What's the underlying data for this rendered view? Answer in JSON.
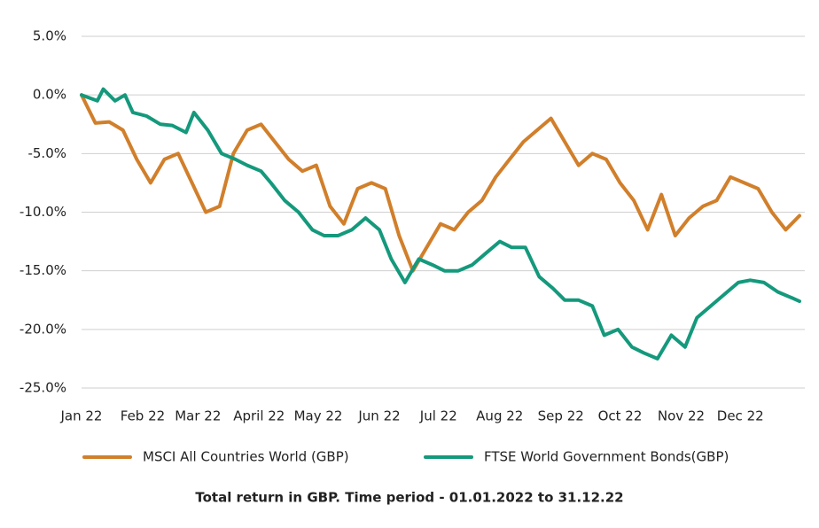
{
  "chart_data": {
    "type": "line",
    "caption": "Total return in GBP. Time period - 01.01.2022 to 31.12.22",
    "xlim": [
      0,
      364
    ],
    "xticks": [
      {
        "value": 0,
        "label": "Jan 22"
      },
      {
        "value": 31,
        "label": "Feb 22"
      },
      {
        "value": 59,
        "label": "Mar 22"
      },
      {
        "value": 90,
        "label": "April 22"
      },
      {
        "value": 120,
        "label": "May 22"
      },
      {
        "value": 151,
        "label": "Jun 22"
      },
      {
        "value": 181,
        "label": "Jul 22"
      },
      {
        "value": 212,
        "label": "Aug 22"
      },
      {
        "value": 243,
        "label": "Sep 22"
      },
      {
        "value": 273,
        "label": "Oct 22"
      },
      {
        "value": 304,
        "label": "Nov 22"
      },
      {
        "value": 334,
        "label": "Dec 22"
      }
    ],
    "ylim": [
      -25,
      5
    ],
    "yticks": [
      {
        "value": 5,
        "label": "5.0%"
      },
      {
        "value": 0,
        "label": "0.0%"
      },
      {
        "value": -5,
        "label": "-5.0%"
      },
      {
        "value": -10,
        "label": "-10.0%"
      },
      {
        "value": -15,
        "label": "-15.0%"
      },
      {
        "value": -20,
        "label": "-20.0%"
      },
      {
        "value": -25,
        "label": "-25.0%"
      }
    ],
    "grid": true,
    "series": [
      {
        "name": "MSCI All Countries World (GBP)",
        "color": "#d17f2b",
        "x": [
          0,
          7,
          14,
          21,
          28,
          35,
          42,
          49,
          56,
          63,
          70,
          77,
          84,
          91,
          98,
          105,
          112,
          119,
          126,
          133,
          140,
          147,
          154,
          161,
          168,
          175,
          182,
          189,
          196,
          203,
          210,
          217,
          224,
          231,
          238,
          245,
          252,
          259,
          266,
          273,
          280,
          287,
          294,
          301,
          308,
          315,
          322,
          329,
          336,
          343,
          350,
          357,
          364
        ],
        "values": [
          0,
          -2.4,
          -2.3,
          -3.0,
          -5.5,
          -7.5,
          -5.5,
          -5.0,
          -7.5,
          -10.0,
          -9.5,
          -5.0,
          -3.0,
          -2.5,
          -4.0,
          -5.5,
          -6.5,
          -6.0,
          -9.5,
          -11.0,
          -8.0,
          -7.5,
          -8.0,
          -12.0,
          -15.0,
          -13.0,
          -11.0,
          -11.5,
          -10.0,
          -9.0,
          -7.0,
          -5.5,
          -4.0,
          -3.0,
          -2.0,
          -4.0,
          -6.0,
          -5.0,
          -5.5,
          -7.5,
          -9.0,
          -11.5,
          -8.5,
          -12.0,
          -10.5,
          -9.5,
          -9.0,
          -7.0,
          -7.5,
          -8.0,
          -10.0,
          -11.5,
          -10.3
        ]
      },
      {
        "name": "FTSE World Government Bonds(GBP)",
        "color": "#14997c",
        "x": [
          0,
          8,
          11,
          17,
          22,
          26,
          33,
          40,
          46,
          53,
          57,
          64,
          71,
          78,
          84,
          91,
          96,
          103,
          110,
          117,
          123,
          130,
          137,
          144,
          151,
          157,
          164,
          171,
          178,
          184,
          191,
          198,
          205,
          212,
          218,
          225,
          232,
          239,
          245,
          252,
          259,
          265,
          272,
          279,
          285,
          292,
          299,
          306,
          312,
          319,
          326,
          333,
          339,
          346,
          353,
          360,
          364
        ],
        "values": [
          0,
          -0.5,
          0.5,
          -0.5,
          0,
          -1.5,
          -1.8,
          -2.5,
          -2.6,
          -3.2,
          -1.5,
          -3.0,
          -5.0,
          -5.5,
          -6.0,
          -6.5,
          -7.5,
          -9.0,
          -10.0,
          -11.5,
          -12.0,
          -12.0,
          -11.5,
          -10.5,
          -11.5,
          -14.0,
          -16.0,
          -14.0,
          -14.5,
          -15.0,
          -15.0,
          -14.5,
          -13.5,
          -12.5,
          -13.0,
          -13.0,
          -15.5,
          -16.5,
          -17.5,
          -17.5,
          -18.0,
          -20.5,
          -20.0,
          -21.5,
          -22.0,
          -22.5,
          -20.5,
          -21.5,
          -19.0,
          -18.0,
          -17.0,
          -16.0,
          -15.8,
          -16.0,
          -16.8,
          -17.3,
          -17.6
        ]
      }
    ]
  }
}
